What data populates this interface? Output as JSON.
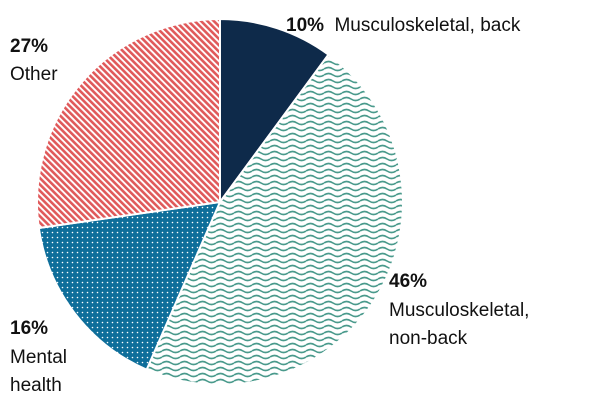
{
  "chart_data": {
    "type": "pie",
    "title": "",
    "slices": [
      {
        "pct_label": "10%",
        "label_lines": [
          "Musculoskeletal, back"
        ],
        "value": 10,
        "color": "#0e2a4a",
        "pattern": "solid"
      },
      {
        "pct_label": "46%",
        "label_lines": [
          "Musculoskeletal,",
          "non-back"
        ],
        "value": 46,
        "color": "#4a9a8c",
        "pattern": "waves"
      },
      {
        "pct_label": "16%",
        "label_lines": [
          "Mental",
          "health"
        ],
        "value": 16,
        "color": "#0e6e9a",
        "pattern": "dots"
      },
      {
        "pct_label": "27%",
        "label_lines": [
          "Other"
        ],
        "value": 27,
        "color": "#e0595a",
        "pattern": "diagonal"
      }
    ]
  }
}
